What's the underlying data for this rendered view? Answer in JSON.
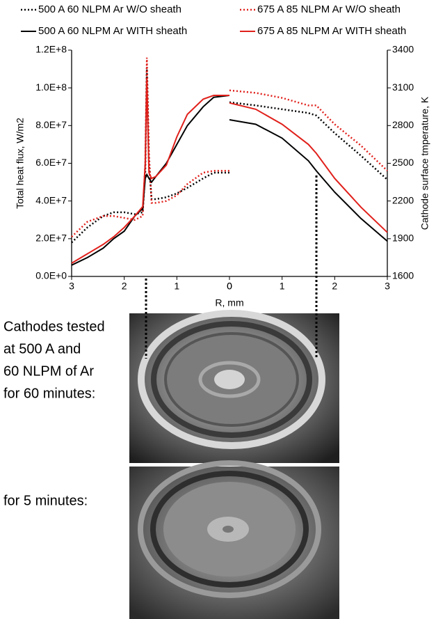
{
  "chart_data": [
    {
      "type": "line",
      "ylabel": "Total heat flux, W/m2",
      "xlabel": "R, mm",
      "xlim": [
        3,
        0
      ],
      "xticks": [
        3,
        2,
        1,
        0
      ],
      "ylim": [
        0,
        120000000
      ],
      "yticks": [
        {
          "value": 0,
          "label": "0.0E+0"
        },
        {
          "value": 20000000,
          "label": "2.0E+7"
        },
        {
          "value": 40000000,
          "label": "4.0E+7"
        },
        {
          "value": 60000000,
          "label": "6.0E+7"
        },
        {
          "value": 80000000,
          "label": "8.0E+7"
        },
        {
          "value": 100000000,
          "label": "1.0E+8"
        },
        {
          "value": 120000000,
          "label": "1.2E+8"
        }
      ],
      "series": [
        {
          "name": "500 A 60 NLPM Ar W/O sheath",
          "color": "#000000",
          "dashed": true,
          "x": [
            3,
            2.7,
            2.4,
            2.2,
            2.0,
            1.8,
            1.65,
            1.6,
            1.57,
            1.53,
            1.48,
            1.4,
            1.2,
            1.0,
            0.8,
            0.5,
            0.3,
            0
          ],
          "values": [
            18000000,
            26000000,
            32000000,
            34000000,
            34000000,
            33000000,
            34000000,
            55000000,
            111000000,
            60000000,
            41000000,
            41000000,
            42000000,
            44000000,
            47000000,
            52000000,
            55000000,
            55000000
          ]
        },
        {
          "name": "675 A 85 NLPM Ar W/O sheath",
          "color": "#e0201b",
          "dashed": true,
          "x": [
            3,
            2.7,
            2.4,
            2.2,
            2.0,
            1.8,
            1.65,
            1.6,
            1.57,
            1.53,
            1.48,
            1.4,
            1.2,
            1.0,
            0.8,
            0.5,
            0.3,
            0
          ],
          "values": [
            21000000,
            29000000,
            32000000,
            32000000,
            31000000,
            30000000,
            32000000,
            60000000,
            116000000,
            65000000,
            39000000,
            39000000,
            40000000,
            43000000,
            49000000,
            55000000,
            56000000,
            56000000
          ]
        },
        {
          "name": "500 A 60 NLPM Ar WITH sheath",
          "color": "#000000",
          "dashed": false,
          "x": [
            3,
            2.7,
            2.4,
            2.2,
            2.0,
            1.8,
            1.65,
            1.6,
            1.57,
            1.53,
            1.48,
            1.4,
            1.2,
            1.0,
            0.8,
            0.5,
            0.3,
            0
          ],
          "values": [
            6000000,
            10000000,
            15000000,
            20000000,
            24000000,
            32000000,
            36000000,
            52000000,
            54000000,
            52000000,
            50000000,
            53000000,
            60000000,
            70000000,
            80000000,
            90000000,
            95000000,
            96000000
          ]
        },
        {
          "name": "675 A 85 NLPM Ar WITH sheath",
          "color": "#e0201b",
          "dashed": false,
          "x": [
            3,
            2.7,
            2.4,
            2.2,
            2.0,
            1.8,
            1.65,
            1.6,
            1.57,
            1.53,
            1.48,
            1.4,
            1.2,
            1.0,
            0.8,
            0.5,
            0.3,
            0
          ],
          "values": [
            7000000,
            12000000,
            17000000,
            21000000,
            26000000,
            32000000,
            37000000,
            60000000,
            105000000,
            55000000,
            52000000,
            53000000,
            59000000,
            74000000,
            86000000,
            94000000,
            96000000,
            96000000
          ]
        }
      ]
    },
    {
      "type": "line",
      "ylabel": "Cathode surface tmperature, K",
      "xlim": [
        0,
        3
      ],
      "xticks": [
        0,
        1,
        2,
        3
      ],
      "ylim": [
        1600,
        3400
      ],
      "yticks": [
        1600,
        1900,
        2200,
        2500,
        2800,
        3100,
        3400
      ],
      "series": [
        {
          "color": "#000000",
          "dashed": true,
          "x": [
            0,
            0.5,
            1,
            1.5,
            1.65,
            2,
            2.5,
            3
          ],
          "values": [
            2985,
            2960,
            2930,
            2900,
            2880,
            2740,
            2560,
            2370
          ]
        },
        {
          "color": "#e0201b",
          "dashed": true,
          "x": [
            0,
            0.5,
            1,
            1.5,
            1.65,
            2,
            2.5,
            3
          ],
          "values": [
            3080,
            3060,
            3020,
            2960,
            2960,
            2810,
            2640,
            2440
          ]
        },
        {
          "color": "#000000",
          "dashed": false,
          "x": [
            0,
            0.5,
            1,
            1.5,
            1.65,
            2,
            2.5,
            3
          ],
          "values": [
            2846,
            2810,
            2700,
            2520,
            2440,
            2270,
            2060,
            1880
          ]
        },
        {
          "color": "#e0201b",
          "dashed": false,
          "x": [
            0,
            0.5,
            1,
            1.5,
            1.65,
            2,
            2.5,
            3
          ],
          "values": [
            2980,
            2930,
            2810,
            2650,
            2580,
            2380,
            2150,
            1950
          ]
        }
      ]
    }
  ],
  "captions": {
    "first": [
      "Cathodes tested",
      "at 500 A and",
      "60 NLPM of Ar",
      "for 60 minutes:"
    ],
    "second": "for 5 minutes:"
  }
}
